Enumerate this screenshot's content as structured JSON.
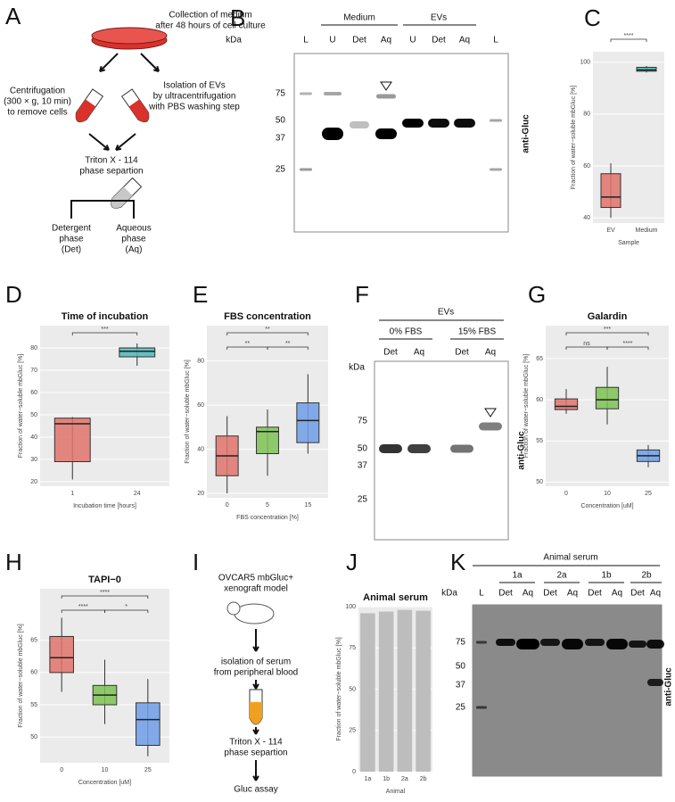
{
  "A": {
    "letter": "A",
    "collection": [
      "Collection of medium",
      "after 48 hours of cell culture"
    ],
    "centrifugation": [
      "Centrifugation",
      "(300 × g, 10 min)",
      "to remove cells"
    ],
    "isolation": [
      "Isolation of EVs",
      "by ultracentrifugation",
      "with PBS washing step"
    ],
    "triton": [
      "Triton X - 114",
      "phase separtion"
    ],
    "detergent": [
      "Detergent",
      "phase",
      "(Det)"
    ],
    "aqueous": [
      "Aqueous",
      "phase",
      "(Aq)"
    ]
  },
  "B": {
    "letter": "B",
    "groups": [
      "Medium",
      "EVs"
    ],
    "lanes": [
      "L",
      "U",
      "Det",
      "Aq",
      "U",
      "Det",
      "Aq",
      "L"
    ],
    "unit": "kDa",
    "markers": [
      75,
      50,
      37,
      25
    ],
    "antibody": "anti-Gluc"
  },
  "F": {
    "letter": "F",
    "header": "EVs",
    "groups": [
      "0% FBS",
      "15% FBS"
    ],
    "lanes": [
      "Det",
      "Aq",
      "Det",
      "Aq"
    ],
    "unit": "kDa",
    "markers": [
      75,
      50,
      37,
      25
    ],
    "antibody": "anti-Gluc"
  },
  "I": {
    "letter": "I",
    "model": [
      "OVCAR5 mbGluc+",
      "xenograft model"
    ],
    "isolation": [
      "isolation of serum",
      "from peripheral blood"
    ],
    "triton": [
      "Triton X - 114",
      "phase separtion"
    ],
    "assay": "Gluc assay"
  },
  "K": {
    "letter": "K",
    "header": "Animal serum",
    "groups": [
      "1a",
      "2a",
      "1b",
      "2b"
    ],
    "lanes": [
      "L",
      "Det",
      "Aq",
      "Det",
      "Aq",
      "Det",
      "Aq",
      "Det",
      "Aq"
    ],
    "unit": "kDa",
    "markers": [
      75,
      50,
      37,
      25
    ],
    "antibody": "anti-Gluc"
  },
  "charts": [
    {
      "type": "box",
      "letter": "C",
      "ylabel": "Fraction of water−soluble mbGluc [%]",
      "xlabel": "Sample",
      "ylim": [
        38,
        104
      ],
      "yticks": [
        40,
        60,
        80,
        100
      ],
      "boxes": [
        {
          "name": "EV",
          "color": "#e0736b",
          "min": 40,
          "q1": 44,
          "median": 48,
          "q3": 57,
          "max": 61
        },
        {
          "name": "Medium",
          "color": "#4fb8b8",
          "min": 96,
          "q1": 96.5,
          "median": 97,
          "q3": 98,
          "max": 98.5
        }
      ],
      "significance": [
        {
          "label": "****",
          "pair": [
            "EV",
            "Medium"
          ]
        }
      ]
    },
    {
      "type": "box",
      "letter": "D",
      "title": "Time of incubation",
      "ylabel": "Fraction of water−soluble mbGluc [%]",
      "xlabel": "Incubation time [hours]",
      "ylim": [
        18,
        90
      ],
      "yticks": [
        20,
        30,
        40,
        50,
        60,
        70,
        80
      ],
      "boxes": [
        {
          "name": "1",
          "color": "#e0736b",
          "min": 21,
          "q1": 29,
          "median": 46,
          "q3": 48.5,
          "max": 49
        },
        {
          "name": "24",
          "color": "#4fb8b8",
          "min": 72,
          "q1": 76,
          "median": 78.5,
          "q3": 80,
          "max": 82
        }
      ],
      "significance": [
        {
          "label": "***",
          "pair": [
            "1",
            "24"
          ]
        }
      ]
    },
    {
      "type": "box",
      "letter": "E",
      "title": "FBS concentration",
      "ylabel": "Fraction of water−soluble mbGluc [%]",
      "xlabel": "FBS concentration [%]",
      "ylim": [
        18,
        96
      ],
      "yticks": [
        20,
        40,
        60,
        80
      ],
      "boxes": [
        {
          "name": "0",
          "color": "#e0736b",
          "min": 20,
          "q1": 28,
          "median": 37,
          "q3": 46,
          "max": 55
        },
        {
          "name": "5",
          "color": "#7cc254",
          "min": 28,
          "q1": 38,
          "median": 48,
          "q3": 50,
          "max": 58
        },
        {
          "name": "15",
          "color": "#6e9ee8",
          "min": 38,
          "q1": 43,
          "median": 53,
          "q3": 61,
          "max": 74
        }
      ],
      "significance": [
        {
          "label": "**",
          "pair": [
            "0",
            "15"
          ]
        },
        {
          "label": "**",
          "pair": [
            "0",
            "5"
          ]
        },
        {
          "label": "**",
          "pair": [
            "5",
            "15"
          ]
        }
      ]
    },
    {
      "type": "box",
      "letter": "G",
      "title": "Galardin",
      "ylabel": "Fraction of water−soluble mbGluc [%]",
      "xlabel": "Concentration [uM]",
      "ylim": [
        49.5,
        69
      ],
      "yticks": [
        50,
        55,
        60,
        65
      ],
      "boxes": [
        {
          "name": "0",
          "color": "#e0736b",
          "min": 58.3,
          "q1": 58.8,
          "median": 59.2,
          "q3": 60.1,
          "max": 61.3
        },
        {
          "name": "10",
          "color": "#7cc254",
          "min": 57,
          "q1": 58.9,
          "median": 60,
          "q3": 61.5,
          "max": 64
        },
        {
          "name": "25",
          "color": "#6e9ee8",
          "min": 51.8,
          "q1": 52.5,
          "median": 53.2,
          "q3": 53.9,
          "max": 54.5
        }
      ],
      "significance": [
        {
          "label": "***",
          "pair": [
            "0",
            "25"
          ]
        },
        {
          "label": "ns",
          "pair": [
            "0",
            "10"
          ]
        },
        {
          "label": "****",
          "pair": [
            "10",
            "25"
          ]
        }
      ]
    },
    {
      "type": "box",
      "letter": "H",
      "title": "TAPI−0",
      "ylabel": "Fraction of water−soluble mbGluc [%]",
      "xlabel": "Concentration [uM]",
      "ylim": [
        46,
        73
      ],
      "yticks": [
        50,
        55,
        60,
        65
      ],
      "boxes": [
        {
          "name": "0",
          "color": "#e0736b",
          "min": 57,
          "q1": 60,
          "median": 62.3,
          "q3": 65.6,
          "max": 68.5
        },
        {
          "name": "10",
          "color": "#7cc254",
          "min": 52,
          "q1": 55,
          "median": 56.5,
          "q3": 58,
          "max": 62
        },
        {
          "name": "25",
          "color": "#6e9ee8",
          "min": 47,
          "q1": 48.7,
          "median": 52.7,
          "q3": 55.3,
          "max": 59
        }
      ],
      "significance": [
        {
          "label": "****",
          "pair": [
            "0",
            "25"
          ]
        },
        {
          "label": "****",
          "pair": [
            "0",
            "10"
          ]
        },
        {
          "label": "*",
          "pair": [
            "10",
            "25"
          ]
        }
      ]
    },
    {
      "type": "bar",
      "letter": "J",
      "title": "Animal serum",
      "ylabel": "Fraction of water−soluble mbGluc [%]",
      "xlabel": "Animal",
      "ylim": [
        0,
        100
      ],
      "yticks": [
        0,
        25,
        50,
        75,
        100
      ],
      "categories": [
        "1a",
        "1b",
        "2a",
        "2b"
      ],
      "values": [
        96,
        97,
        98,
        97.5
      ],
      "color": "#bdbdbd"
    }
  ]
}
